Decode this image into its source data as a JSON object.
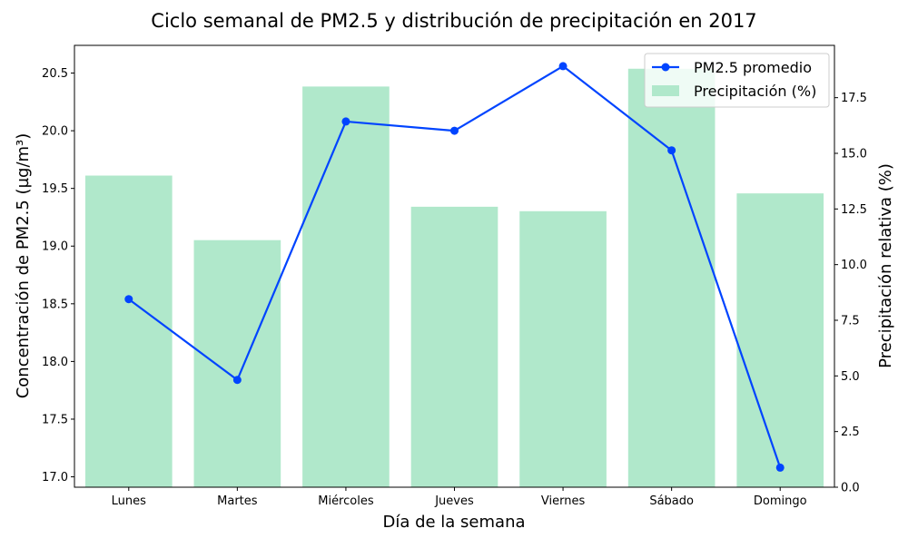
{
  "chart_data": {
    "type": "bar+line",
    "title": "Ciclo semanal de PM2.5 y distribución de precipitación en 2017",
    "xlabel": "Día de la semana",
    "ylabel_left": "Concentración de PM2.5 (µg/m³)",
    "ylabel_right": "Precipitación relativa (%)",
    "categories": [
      "Lunes",
      "Martes",
      "Miércoles",
      "Jueves",
      "Viernes",
      "Sábado",
      "Domingo"
    ],
    "ylim_left": [
      16.91,
      20.74
    ],
    "ylim_right": [
      0,
      19.85
    ],
    "yticks_left": [
      17.0,
      17.5,
      18.0,
      18.5,
      19.0,
      19.5,
      20.0,
      20.5
    ],
    "yticks_left_labels": [
      "17.0",
      "17.5",
      "18.0",
      "18.5",
      "19.0",
      "19.5",
      "20.0",
      "20.5"
    ],
    "yticks_right": [
      0,
      2.5,
      5,
      7.5,
      10,
      12.5,
      15,
      17.5
    ],
    "yticks_right_labels": [
      "0.0",
      "2.5",
      "5.0",
      "7.5",
      "10.0",
      "12.5",
      "15.0",
      "17.5"
    ],
    "grid": false,
    "legend_position": "top-right",
    "series": [
      {
        "name": "PM2.5 promedio",
        "kind": "line",
        "axis": "left",
        "color": "#0044ff",
        "values": [
          18.54,
          17.84,
          20.08,
          20.0,
          20.56,
          19.83,
          17.08
        ]
      },
      {
        "name": "Precipitación (%)",
        "kind": "bar",
        "axis": "right",
        "color": "#b0e8cb",
        "values": [
          14.0,
          11.1,
          18.0,
          12.6,
          12.4,
          18.8,
          13.2
        ]
      }
    ]
  }
}
